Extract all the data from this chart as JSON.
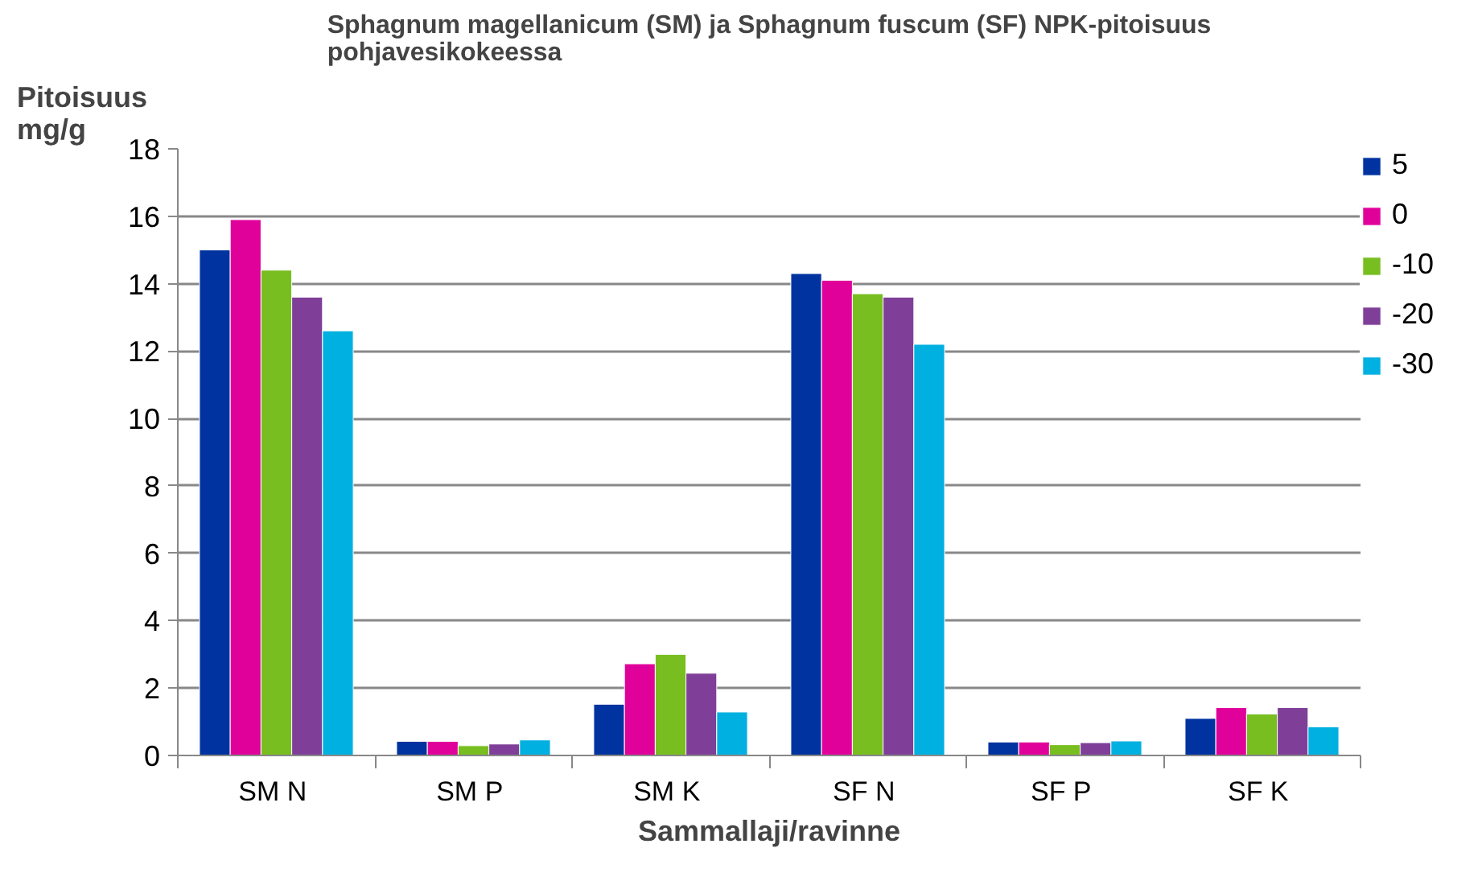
{
  "chart_data": {
    "type": "bar",
    "title": "Sphagnum magellanicum (SM) ja Sphagnum fuscum (SF) NPK-pitoisuus pohjavesikokeessa",
    "ylabel": "Pitoisuus mg/g",
    "xlabel": "Sammallaji/ravinne",
    "categories": [
      "SM  N",
      "SM  P",
      "SM  K",
      "SF  N",
      "SF  P",
      "SF  K"
    ],
    "series": [
      {
        "name": "5",
        "color": "#0033a0",
        "values": [
          15.0,
          0.42,
          1.52,
          14.3,
          0.4,
          1.1
        ]
      },
      {
        "name": "0",
        "color": "#e0009a",
        "values": [
          15.9,
          0.42,
          2.72,
          14.1,
          0.4,
          1.42
        ]
      },
      {
        "name": "-10",
        "color": "#78be20",
        "values": [
          14.4,
          0.29,
          3.0,
          13.7,
          0.32,
          1.23
        ]
      },
      {
        "name": "-20",
        "color": "#7f3f98",
        "values": [
          13.6,
          0.34,
          2.44,
          13.6,
          0.38,
          1.42
        ]
      },
      {
        "name": "-30",
        "color": "#00b0e0",
        "values": [
          12.6,
          0.46,
          1.29,
          12.2,
          0.43,
          0.85
        ]
      }
    ],
    "ylim": [
      0,
      18
    ],
    "yticks": [
      0,
      2,
      4,
      6,
      8,
      10,
      12,
      14,
      16,
      18
    ],
    "grid": "y",
    "legend": "right"
  }
}
